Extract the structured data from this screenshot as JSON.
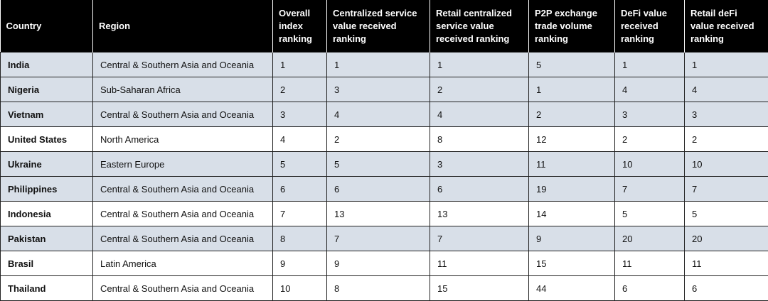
{
  "table": {
    "header": [
      "Country",
      "Region",
      "Overall index ranking",
      "Centralized service value received ranking",
      "Retail centralized service value received ranking",
      "P2P exchange trade volume ranking",
      "DeFi value received ranking",
      "Retail deFi value received ranking"
    ],
    "rows": [
      [
        "India",
        "Central & Southern Asia and Oceania",
        1,
        1,
        1,
        5,
        1,
        1
      ],
      [
        "Nigeria",
        "Sub-Saharan Africa",
        2,
        3,
        2,
        1,
        4,
        4
      ],
      [
        "Vietnam",
        "Central & Southern Asia and Oceania",
        3,
        4,
        4,
        2,
        3,
        3
      ],
      [
        "United States",
        "North America",
        4,
        2,
        8,
        12,
        2,
        2
      ],
      [
        "Ukraine",
        "Eastern Europe",
        5,
        5,
        3,
        11,
        10,
        10
      ],
      [
        "Philippines",
        "Central & Southern Asia and Oceania",
        6,
        6,
        6,
        19,
        7,
        7
      ],
      [
        "Indonesia",
        "Central & Southern Asia and Oceania",
        7,
        13,
        13,
        14,
        5,
        5
      ],
      [
        "Pakistan",
        "Central & Southern Asia and Oceania",
        8,
        7,
        7,
        9,
        20,
        20
      ],
      [
        "Brasil",
        "Latin America",
        9,
        9,
        11,
        15,
        11,
        11
      ],
      [
        "Thailand",
        "Central & Southern Asia and Oceania",
        10,
        8,
        15,
        44,
        6,
        6
      ]
    ]
  }
}
